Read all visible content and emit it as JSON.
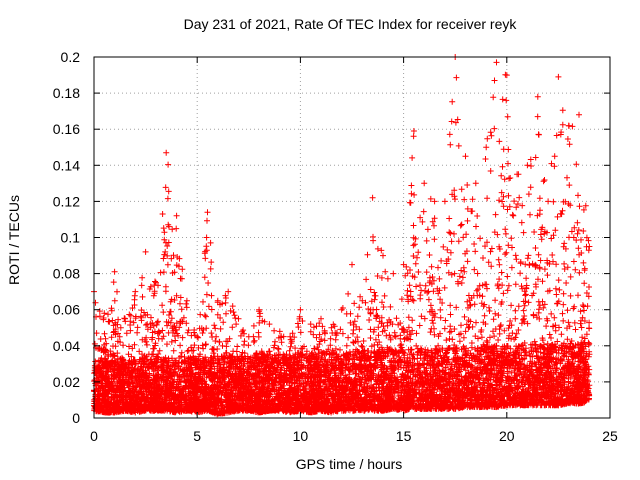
{
  "chart_data": {
    "type": "scatter",
    "title": "Day 231 of 2021, Rate Of TEC Index for receiver reyk",
    "xlabel": "GPS time / hours",
    "ylabel": "ROTI / TECUs",
    "xlim": [
      0,
      25
    ],
    "ylim": [
      0,
      0.2
    ],
    "xticks": [
      0,
      5,
      10,
      15,
      20,
      25
    ],
    "yticks": [
      0,
      0.02,
      0.04,
      0.06,
      0.08,
      0.1,
      0.12,
      0.14,
      0.16,
      0.18,
      0.2
    ],
    "xtick_labels": [
      "0",
      "5",
      "10",
      "15",
      "20",
      "25"
    ],
    "ytick_labels": [
      "0",
      "0.02",
      "0.04",
      "0.06",
      "0.08",
      "0.1",
      "0.12",
      "0.14",
      "0.16",
      "0.18",
      "0.2"
    ],
    "grid": true,
    "marker": "+",
    "color": "#ff0000",
    "envelope": {
      "x": [
        0,
        0.5,
        1,
        1.5,
        2,
        2.5,
        3,
        3.5,
        4,
        4.5,
        5,
        5.5,
        6,
        6.5,
        7,
        7.5,
        8,
        8.5,
        9,
        9.5,
        10,
        10.5,
        11,
        11.5,
        12,
        12.5,
        13,
        13.5,
        14,
        14.5,
        15,
        15.5,
        16,
        16.5,
        17,
        17.5,
        18,
        18.5,
        19,
        19.5,
        20,
        20.5,
        21,
        21.5,
        22,
        22.5,
        23,
        23.5,
        24
      ],
      "y_max": [
        0.07,
        0.058,
        0.081,
        0.055,
        0.07,
        0.092,
        0.075,
        0.147,
        0.112,
        0.065,
        0.045,
        0.114,
        0.065,
        0.07,
        0.055,
        0.045,
        0.06,
        0.052,
        0.048,
        0.045,
        0.06,
        0.052,
        0.055,
        0.05,
        0.06,
        0.085,
        0.065,
        0.122,
        0.09,
        0.08,
        0.085,
        0.159,
        0.13,
        0.12,
        0.12,
        0.2,
        0.145,
        0.13,
        0.15,
        0.197,
        0.19,
        0.135,
        0.14,
        0.178,
        0.12,
        0.189,
        0.162,
        0.168,
        0.095
      ],
      "y_min": [
        0.004,
        0.003,
        0.003,
        0.004,
        0.003,
        0.004,
        0.004,
        0.004,
        0.003,
        0.004,
        0.003,
        0.004,
        0.002,
        0.003,
        0.004,
        0.004,
        0.003,
        0.004,
        0.004,
        0.003,
        0.004,
        0.003,
        0.004,
        0.003,
        0.004,
        0.004,
        0.004,
        0.004,
        0.004,
        0.005,
        0.004,
        0.005,
        0.005,
        0.005,
        0.005,
        0.005,
        0.006,
        0.006,
        0.006,
        0.006,
        0.007,
        0.007,
        0.007,
        0.007,
        0.007,
        0.007,
        0.008,
        0.008,
        0.009
      ]
    }
  }
}
